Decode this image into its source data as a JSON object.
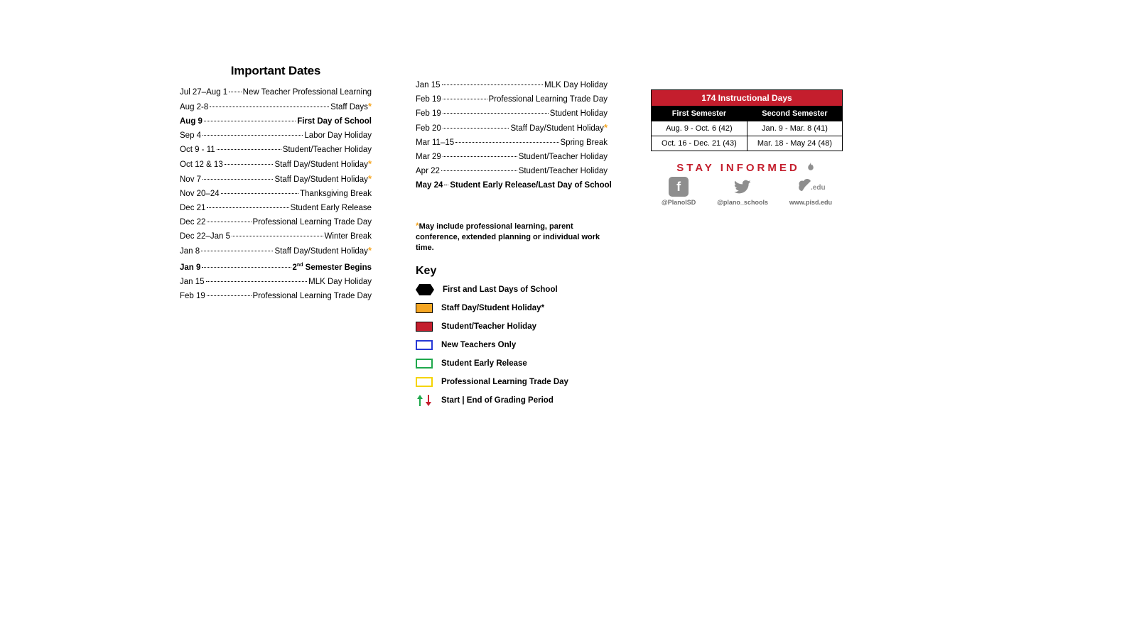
{
  "colors": {
    "accent_red": "#c41e2d",
    "accent_orange": "#f5a623",
    "outline_blue": "#2638d6",
    "outline_green": "#1fa84c",
    "outline_yellow": "#f5d400",
    "icon_gray": "#8e8e8e",
    "text": "#000000",
    "bg": "#ffffff"
  },
  "title": "Important Dates",
  "dates_col1": [
    {
      "date": "Jul 27–Aug 1",
      "desc": "New Teacher Professional Learning",
      "bold": false,
      "asterisk": false
    },
    {
      "date": "Aug 2-8",
      "desc": "Staff Days",
      "bold": false,
      "asterisk": true
    },
    {
      "date": "Aug 9",
      "desc": "First Day of School",
      "bold": true,
      "asterisk": false
    },
    {
      "date": "Sep 4",
      "desc": "Labor Day Holiday",
      "bold": false,
      "asterisk": false
    },
    {
      "date": "Oct 9 - 11",
      "desc": "Student/Teacher Holiday",
      "bold": false,
      "asterisk": false
    },
    {
      "date": "Oct 12 & 13",
      "desc": "Staff Day/Student Holiday",
      "bold": false,
      "asterisk": true
    },
    {
      "date": "Nov 7",
      "desc": "Staff Day/Student Holiday",
      "bold": false,
      "asterisk": true
    },
    {
      "date": "Nov 20–24",
      "desc": "Thanksgiving Break",
      "bold": false,
      "asterisk": false
    },
    {
      "date": "Dec 21",
      "desc": "Student Early Release",
      "bold": false,
      "asterisk": false
    },
    {
      "date": "Dec 22",
      "desc": "Professional Learning Trade Day",
      "bold": false,
      "asterisk": false
    },
    {
      "date": "Dec 22–Jan 5",
      "desc": "Winter Break",
      "bold": false,
      "asterisk": false
    },
    {
      "date": "Jan 8",
      "desc": "Staff Day/Student Holiday",
      "bold": false,
      "asterisk": true
    },
    {
      "date": "Jan 9",
      "desc": "2nd Semester Begins",
      "bold": true,
      "asterisk": false,
      "sup": "nd"
    },
    {
      "date": "Jan 15",
      "desc": "MLK Day Holiday",
      "bold": false,
      "asterisk": false
    },
    {
      "date": "Feb 19",
      "desc": "Professional Learning Trade Day",
      "bold": false,
      "asterisk": false
    }
  ],
  "dates_col2": [
    {
      "date": "Jan 15",
      "desc": "MLK Day Holiday",
      "bold": false,
      "asterisk": false
    },
    {
      "date": "Feb 19",
      "desc": "Professional Learning Trade Day",
      "bold": false,
      "asterisk": false
    },
    {
      "date": "Feb 19",
      "desc": "Student Holiday",
      "bold": false,
      "asterisk": false
    },
    {
      "date": "Feb 20",
      "desc": "Staff Day/Student Holiday",
      "bold": false,
      "asterisk": true
    },
    {
      "date": "Mar 11–15",
      "desc": "Spring Break",
      "bold": false,
      "asterisk": false
    },
    {
      "date": "Mar 29",
      "desc": "Student/Teacher Holiday",
      "bold": false,
      "asterisk": false
    },
    {
      "date": "Apr 22",
      "desc": "Student/Teacher Holiday",
      "bold": false,
      "asterisk": false
    },
    {
      "date": "May 24",
      "desc": "Student Early Release/Last Day of School",
      "bold": true,
      "asterisk": false
    }
  ],
  "footnote": "May include professional learning, parent conference, extended planning or individual work time.",
  "key_title": "Key",
  "key_items": [
    {
      "swatch": "hexagon",
      "label": "First and Last Days of School"
    },
    {
      "swatch": "solid-orange",
      "label": "Staff Day/Student Holiday*"
    },
    {
      "swatch": "solid-red",
      "label": "Student/Teacher Holiday"
    },
    {
      "swatch": "outline-blue",
      "label": "New Teachers Only"
    },
    {
      "swatch": "outline-green",
      "label": "Student Early Release"
    },
    {
      "swatch": "outline-yellow",
      "label": "Professional Learning Trade Day"
    },
    {
      "swatch": "arrows",
      "label": "Start | End of Grading Period"
    }
  ],
  "instruct_table": {
    "header": "174 Instructional Days",
    "col1_header": "First Semester",
    "col2_header": "Second Semester",
    "rows": [
      [
        "Aug. 9 - Oct. 6 (42)",
        "Jan. 9 - Mar. 8 (41)"
      ],
      [
        "Oct. 16 - Dec. 21 (43)",
        "Mar. 18 - May 24 (48)"
      ]
    ]
  },
  "stay_informed": {
    "heading": "STAY INFORMED",
    "items": [
      {
        "icon": "facebook",
        "label": "@PlanoISD"
      },
      {
        "icon": "twitter",
        "label": "@plano_schools"
      },
      {
        "icon": "edu",
        "label": "www.pisd.edu"
      }
    ]
  }
}
